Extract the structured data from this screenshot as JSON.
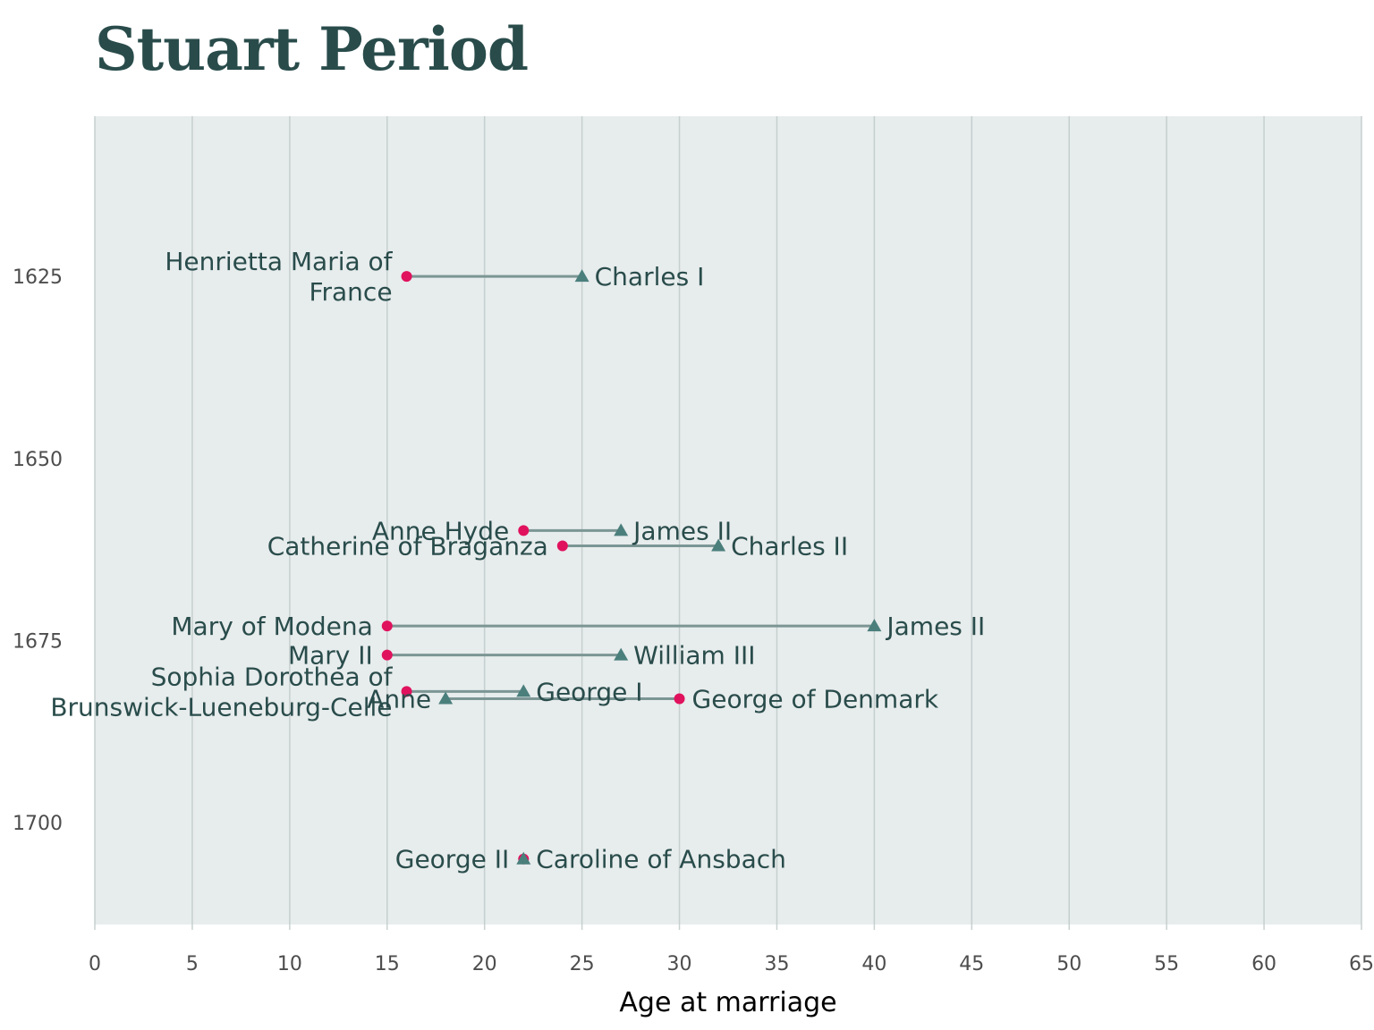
{
  "chart_data": {
    "type": "dumbbell",
    "title": "Stuart Period",
    "xlabel": "Age at marriage",
    "ylabel": "",
    "xlim": [
      0,
      65
    ],
    "ylim": [
      1603,
      1714
    ],
    "x_ticks": [
      0,
      5,
      10,
      15,
      20,
      25,
      30,
      35,
      40,
      45,
      50,
      55,
      60,
      65
    ],
    "y_ticks": [
      1625,
      1650,
      1675,
      1700
    ],
    "grid": "vertical",
    "colors": {
      "panel": "#e7ecec",
      "grid": "#c6cfcf",
      "segment": "#7b9694",
      "female_point": "#e0125e",
      "male_point": "#4a7f7c",
      "label": "#294c4b",
      "title": "#294c4b"
    },
    "marriages": [
      {
        "year": 1625,
        "left_name": "Henrietta Maria of France",
        "left_lines": [
          "Henrietta Maria of",
          "France"
        ],
        "left_age": 16,
        "left_marker": "circle",
        "right_name": "Charles I",
        "right_age": 25,
        "right_marker": "triangle"
      },
      {
        "year": 1659.9,
        "left_name": "Anne Hyde",
        "left_lines": [
          "Anne Hyde"
        ],
        "left_age": 22,
        "left_marker": "circle",
        "right_name": "James II",
        "right_age": 27,
        "right_marker": "triangle"
      },
      {
        "year": 1662,
        "left_name": "Catherine of Braganza",
        "left_lines": [
          "Catherine of Braganza"
        ],
        "left_age": 24,
        "left_marker": "circle",
        "right_name": "Charles II",
        "right_age": 32,
        "right_marker": "triangle"
      },
      {
        "year": 1673,
        "left_name": "Mary of Modena",
        "left_lines": [
          "Mary of Modena"
        ],
        "left_age": 15,
        "left_marker": "circle",
        "right_name": "James II",
        "right_age": 40,
        "right_marker": "triangle"
      },
      {
        "year": 1677,
        "left_name": "Mary II",
        "left_lines": [
          "Mary II"
        ],
        "left_age": 15,
        "left_marker": "circle",
        "right_name": "William III",
        "right_age": 27,
        "right_marker": "triangle"
      },
      {
        "year": 1682,
        "left_name": "Sophia Dorothea of Brunswick-Lueneburg-Celle",
        "left_lines": [
          "Sophia Dorothea of",
          "Brunswick-Lueneburg-Celle"
        ],
        "left_age": 16,
        "left_marker": "circle",
        "right_name": "George I",
        "right_age": 22,
        "right_marker": "triangle"
      },
      {
        "year": 1683,
        "left_name": "Anne",
        "left_lines": [
          "Anne"
        ],
        "left_age": 18,
        "left_marker": "triangle",
        "right_name": "George of Denmark",
        "right_age": 30,
        "right_marker": "circle"
      },
      {
        "year": 1705,
        "left_name": "George II",
        "left_lines": [
          "George II"
        ],
        "left_age": 22,
        "left_marker": "triangle",
        "right_name": "Caroline of Ansbach",
        "right_age": 22,
        "right_marker": "circle"
      }
    ]
  }
}
